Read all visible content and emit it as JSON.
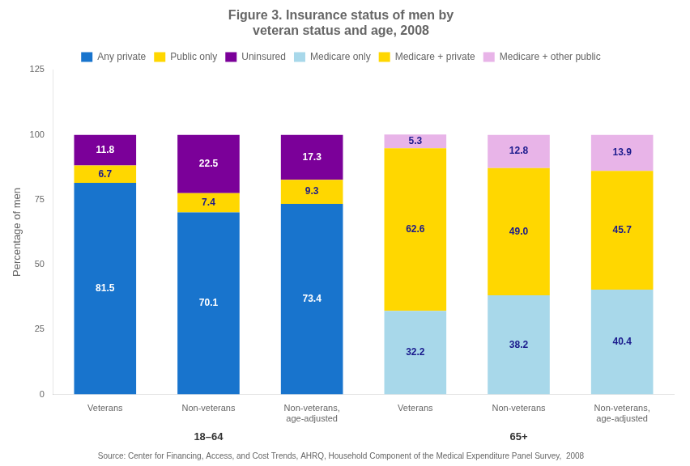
{
  "chart_data": {
    "type": "bar",
    "title": "Figure 3. Insurance status of men by\nveteran status and age, 2008",
    "y_label": "Percentage of men",
    "categories": [
      "Veterans",
      "Non-veterans",
      "Non-veterans,\nage-adjusted",
      "Veterans",
      "Non-veterans",
      "Non-veterans,\nage-adjusted"
    ],
    "groups": [
      "18–64",
      "18–64",
      "18–64",
      "65+",
      "65+",
      "65+"
    ],
    "series": [
      {
        "name": "Any private",
        "color": "#1874CD",
        "values": [
          81.5,
          70.1,
          73.4,
          null,
          null,
          null
        ],
        "value_labels": [
          "81.5",
          "70.1",
          "73.4",
          null,
          null,
          null
        ]
      },
      {
        "name": "Public only",
        "color": "#FFD700",
        "values": [
          6.7,
          7.4,
          9.3,
          null,
          null,
          null
        ],
        "value_labels": [
          "6.7",
          "7.4",
          "9.3",
          null,
          null,
          null
        ]
      },
      {
        "name": "Uninsured",
        "color": "#7B0099",
        "values": [
          11.8,
          22.5,
          17.3,
          null,
          null,
          null
        ],
        "value_labels": [
          "11.8",
          "22.5",
          "17.3",
          null,
          null,
          null
        ]
      },
      {
        "name": "Medicare only",
        "color": "#A8D8EA",
        "values": [
          null,
          null,
          null,
          32.2,
          38.2,
          40.4
        ],
        "value_labels": [
          null,
          null,
          null,
          "32.2",
          "38.2",
          "40.4"
        ]
      },
      {
        "name": "Medicare + private",
        "color": "#FFD700",
        "values": [
          null,
          null,
          null,
          62.6,
          49.0,
          45.7
        ],
        "value_labels": [
          null,
          null,
          null,
          "62.6",
          "49.0",
          "45.7"
        ]
      },
      {
        "name": "Medicare + other public",
        "color": "#E8B4E8",
        "values": [
          null,
          null,
          null,
          5.3,
          12.8,
          13.9
        ],
        "value_labels": [
          null,
          null,
          null,
          "5.3",
          "12.8",
          "13.9"
        ]
      }
    ],
    "stacked": true,
    "data_labels": true,
    "legend": "top",
    "grid": false,
    "ylim": [
      0,
      125
    ],
    "yticks": [
      0,
      25,
      50,
      75,
      100,
      125
    ],
    "annotations": [
      "Source: Center for Financing, Access, and Cost Trends, AHRQ, Household Component of the Medical Expenditure Panel Survey,  2008"
    ]
  }
}
